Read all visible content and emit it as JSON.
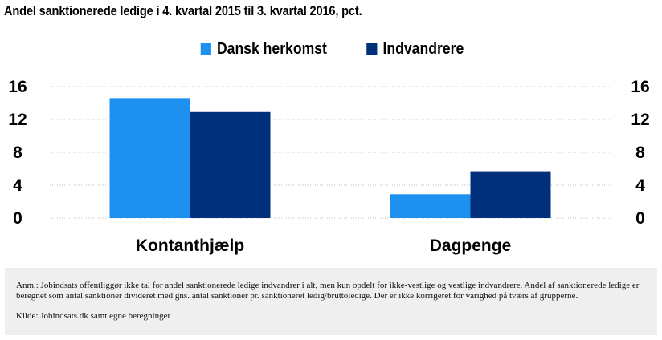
{
  "title": "Andel sanktionerede ledige i 4. kvartal 2015 til 3. kvartal 2016, pct.",
  "note": "Anm.: Jobindsats offentliggør ikke tal for andel sanktionerede ledige indvandrer i alt, men kun opdelt for ikke-vestlige og vestlige indvandrere. Andel af sanktionerede ledige er beregnet som antal sanktioner divideret med gns. antal sanktioner pr. sanktioneret ledig/bruttoledige. Der er ikke korrigeret for varighed på tværs af grupperne.",
  "source": "Kilde: Jobindsats.dk samt egne beregninger",
  "colors": {
    "dansk": "#1e90f0",
    "indvandrere": "#002f7c",
    "grid": "#bdbdbd"
  },
  "chart_data": {
    "type": "bar",
    "title": "Andel sanktionerede ledige i 4. kvartal 2015 til 3. kvartal 2016, pct.",
    "categories": [
      "Kontanthjælp",
      "Dagpenge"
    ],
    "series": [
      {
        "name": "Dansk herkomst",
        "values": [
          14.6,
          2.9
        ]
      },
      {
        "name": "Indvandrere",
        "values": [
          12.9,
          5.7
        ]
      }
    ],
    "ylim": [
      0,
      16
    ],
    "yticks": [
      "0",
      "4",
      "8",
      "12",
      "16"
    ],
    "grid": true,
    "legend": "top-center",
    "secondary_axis": true
  }
}
